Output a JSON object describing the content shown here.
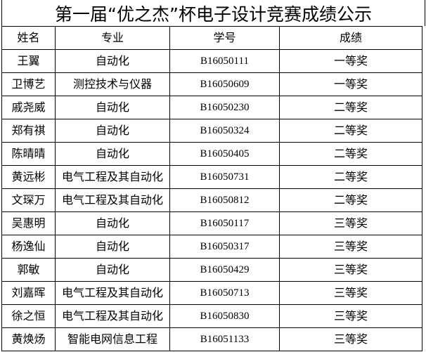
{
  "title": "第一届“优之杰”杯电子设计竞赛成绩公示",
  "headers": [
    "姓名",
    "专业",
    "学号",
    "成绩"
  ],
  "rows": [
    [
      "王翼",
      "自动化",
      "B16050111",
      "一等奖"
    ],
    [
      "卫博艺",
      "测控技术与仪器",
      "B16050609",
      "一等奖"
    ],
    [
      "戚尧威",
      "自动化",
      "B16050230",
      "二等奖"
    ],
    [
      "郑有祺",
      "自动化",
      "B16050324",
      "二等奖"
    ],
    [
      "陈晴晴",
      "自动化",
      "B16050405",
      "二等奖"
    ],
    [
      "黄远彬",
      "电气工程及其自动化",
      "B16050731",
      "二等奖"
    ],
    [
      "文琛万",
      "电气工程及其自动化",
      "B16050812",
      "二等奖"
    ],
    [
      "吴惠明",
      "自动化",
      "B16050117",
      "三等奖"
    ],
    [
      "杨逸仙",
      "自动化",
      "B16050317",
      "三等奖"
    ],
    [
      "郭敏",
      "自动化",
      "B16050429",
      "三等奖"
    ],
    [
      "刘嘉晖",
      "电气工程及其自动化",
      "B16050713",
      "三等奖"
    ],
    [
      "徐之恒",
      "电气工程及其自动化",
      "B16050830",
      "三等奖"
    ],
    [
      "黄焕炀",
      "智能电网信息工程",
      "B16051133",
      "三等奖"
    ]
  ]
}
